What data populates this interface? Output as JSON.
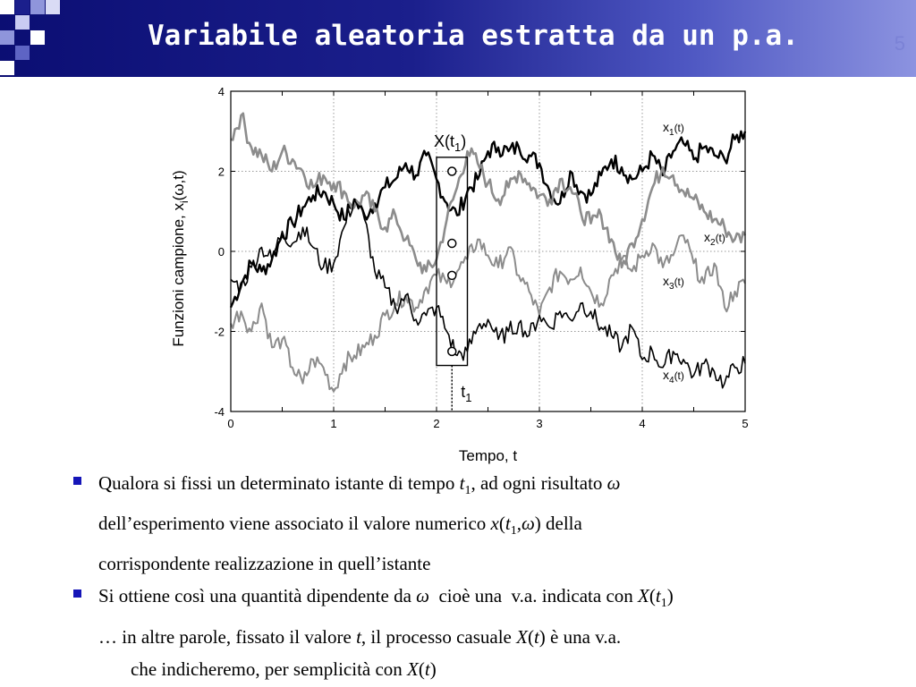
{
  "title": "Variabile aleatoria estratta da un p.a.",
  "slide_number": "5",
  "colors": {
    "title_bg_dark": "#0b0e73",
    "title_bg_light": "#8c93e0",
    "bullet": "#1515b8",
    "title_text": "#ffffff"
  },
  "chart_data": {
    "type": "line",
    "xlabel": "Tempo, t",
    "ylabel": "Funzioni campione, x",
    "ylabel_args": "(ω,t)",
    "ylabel_sub": "i",
    "xlim": [
      0,
      5
    ],
    "ylim": [
      -4,
      4
    ],
    "xticks": [
      "0",
      "1",
      "2",
      "3",
      "4",
      "5"
    ],
    "yticks": [
      "4",
      "2",
      "0",
      "-2",
      "-4"
    ],
    "grid": "dotted",
    "t1": 2.15,
    "annotation_box_x": [
      2.0,
      2.3
    ],
    "annotation_box_y": [
      -2.85,
      2.35
    ],
    "box_label": "X(t",
    "box_label_sub": "1",
    "t1_label": "t",
    "t1_label_sub": "1",
    "series": [
      {
        "name": "x",
        "sub": "1",
        "color": "#000000",
        "width": 2.4,
        "x": [
          0,
          0.1,
          0.2,
          0.3,
          0.4,
          0.5,
          0.6,
          0.7,
          0.8,
          0.9,
          1.0,
          1.1,
          1.2,
          1.3,
          1.4,
          1.5,
          1.6,
          1.7,
          1.8,
          1.9,
          2.0,
          2.1,
          2.2,
          2.3,
          2.4,
          2.5,
          2.6,
          2.7,
          2.8,
          2.9,
          3.0,
          3.1,
          3.2,
          3.3,
          3.4,
          3.5,
          3.6,
          3.7,
          3.8,
          3.9,
          4.0,
          4.1,
          4.2,
          4.3,
          4.4,
          4.5,
          4.6,
          4.7,
          4.8,
          4.9,
          5.0
        ],
        "y": [
          -1.4,
          -0.8,
          -0.3,
          -0.5,
          -0.2,
          0.4,
          0.7,
          1.1,
          1.4,
          1.5,
          1.2,
          0.8,
          1.3,
          0.9,
          1.2,
          1.6,
          1.8,
          2.2,
          1.9,
          2.4,
          1.8,
          1.2,
          0.9,
          1.5,
          1.8,
          2.5,
          2.6,
          2.5,
          2.6,
          2.4,
          2.2,
          1.5,
          1.2,
          2.0,
          1.5,
          1.4,
          1.9,
          2.3,
          2.1,
          1.8,
          2.0,
          2.4,
          1.9,
          2.5,
          2.7,
          2.3,
          2.6,
          2.4,
          2.3,
          2.8,
          3.0
        ]
      },
      {
        "name": "x",
        "sub": "2",
        "color": "#8c8c8c",
        "width": 2.6,
        "x": [
          0,
          0.1,
          0.2,
          0.3,
          0.4,
          0.5,
          0.6,
          0.7,
          0.8,
          0.9,
          1.0,
          1.1,
          1.2,
          1.3,
          1.4,
          1.5,
          1.6,
          1.7,
          1.8,
          1.9,
          2.0,
          2.1,
          2.2,
          2.3,
          2.4,
          2.5,
          2.6,
          2.7,
          2.8,
          2.9,
          3.0,
          3.1,
          3.2,
          3.3,
          3.4,
          3.5,
          3.6,
          3.7,
          3.8,
          3.9,
          4.0,
          4.1,
          4.2,
          4.3,
          4.4,
          4.5,
          4.6,
          4.7,
          4.8,
          4.9,
          5.0
        ],
        "y": [
          2.8,
          3.4,
          2.6,
          2.4,
          2.0,
          2.5,
          2.3,
          2.0,
          1.6,
          1.9,
          1.7,
          1.5,
          1.1,
          1.4,
          1.0,
          0.6,
          0.9,
          0.3,
          -0.2,
          -0.5,
          -0.2,
          0.8,
          1.6,
          2.5,
          2.2,
          1.7,
          1.3,
          1.6,
          2.0,
          1.7,
          1.4,
          1.3,
          1.8,
          1.6,
          1.0,
          0.7,
          0.9,
          0.3,
          -0.4,
          0.2,
          0.8,
          1.6,
          2.1,
          1.9,
          1.5,
          1.3,
          1.0,
          0.8,
          0.6,
          0.3,
          0.4
        ]
      },
      {
        "name": "x",
        "sub": "3",
        "color": "#8c8c8c",
        "width": 2.0,
        "x": [
          0,
          0.1,
          0.2,
          0.3,
          0.4,
          0.5,
          0.6,
          0.7,
          0.8,
          0.9,
          1.0,
          1.1,
          1.2,
          1.3,
          1.4,
          1.5,
          1.6,
          1.7,
          1.8,
          1.9,
          2.0,
          2.1,
          2.2,
          2.3,
          2.4,
          2.5,
          2.6,
          2.7,
          2.8,
          2.9,
          3.0,
          3.1,
          3.2,
          3.3,
          3.4,
          3.5,
          3.6,
          3.7,
          3.8,
          3.9,
          4.0,
          4.1,
          4.2,
          4.3,
          4.4,
          4.5,
          4.6,
          4.7,
          4.8,
          4.9,
          5.0
        ],
        "y": [
          -1.8,
          -1.5,
          -2.0,
          -1.3,
          -2.4,
          -2.2,
          -2.9,
          -3.3,
          -2.7,
          -2.9,
          -3.5,
          -2.8,
          -2.6,
          -2.4,
          -2.1,
          -1.6,
          -1.3,
          -1.1,
          -1.4,
          -0.9,
          -0.6,
          -0.8,
          -0.5,
          -0.2,
          0.3,
          -0.1,
          -0.4,
          0.1,
          -0.6,
          -1.0,
          -1.6,
          -0.9,
          -0.5,
          -0.7,
          -0.4,
          -1.0,
          -1.3,
          -0.6,
          -0.2,
          -0.5,
          -0.1,
          0.2,
          -0.4,
          -0.1,
          0.4,
          -0.3,
          -0.8,
          -0.3,
          -1.4,
          -1.0,
          -0.8
        ]
      },
      {
        "name": "x",
        "sub": "4",
        "color": "#000000",
        "width": 1.6,
        "x": [
          0,
          0.1,
          0.2,
          0.3,
          0.4,
          0.5,
          0.6,
          0.7,
          0.8,
          0.9,
          1.0,
          1.1,
          1.2,
          1.3,
          1.4,
          1.5,
          1.6,
          1.7,
          1.8,
          1.9,
          2.0,
          2.1,
          2.2,
          2.3,
          2.4,
          2.5,
          2.6,
          2.7,
          2.8,
          2.9,
          3.0,
          3.1,
          3.2,
          3.3,
          3.4,
          3.5,
          3.6,
          3.7,
          3.8,
          3.9,
          4.0,
          4.1,
          4.2,
          4.3,
          4.4,
          4.5,
          4.6,
          4.7,
          4.8,
          4.9,
          5.0
        ],
        "y": [
          -0.7,
          -0.9,
          -0.4,
          0.1,
          -0.2,
          0.5,
          0.2,
          0.6,
          0.1,
          -0.4,
          -0.3,
          0.6,
          1.3,
          0.8,
          -0.5,
          -0.9,
          -1.4,
          -1.1,
          -1.7,
          -1.6,
          -1.4,
          -2.0,
          -2.6,
          -2.5,
          -1.9,
          -1.7,
          -2.2,
          -2.0,
          -1.8,
          -2.1,
          -1.6,
          -1.9,
          -1.5,
          -1.7,
          -1.3,
          -1.5,
          -1.9,
          -2.1,
          -2.4,
          -1.9,
          -2.7,
          -2.5,
          -2.9,
          -2.5,
          -2.7,
          -3.1,
          -2.8,
          -3.0,
          -3.3,
          -2.9,
          -2.8
        ]
      }
    ],
    "markers": [
      {
        "x": 2.15,
        "y": 2.0
      },
      {
        "x": 2.15,
        "y": 0.2
      },
      {
        "x": 2.15,
        "y": -0.6
      },
      {
        "x": 2.15,
        "y": -2.5
      }
    ]
  },
  "bullets": [
    {
      "line1_pre": "Qualora si fissi un determinato istante di tempo ",
      "line1_t": "t",
      "line1_sub": "1",
      "line1_mid": ", ad ogni risultato ",
      "line1_omega": "ω",
      "line2_pre": "dell’esperimento viene associato il valore numerico ",
      "line2_x": "x",
      "line2_open": "(",
      "line2_t": "t",
      "line2_sub": "1",
      "line2_comma": ",",
      "line2_omega": "ω",
      "line2_close": ")",
      "line2_post": " della",
      "line3": "corrispondente realizzazione in quell’istante"
    },
    {
      "line1_pre": " Si ottiene così una quantità dipendente da ",
      "line1_omega": "ω",
      "line1_mid": "  cioè una  v.a. indicata con ",
      "line1_X": "X",
      "line1_open": "(",
      "line1_t": "t",
      "line1_sub": "1",
      "line1_close": ")",
      "line2_pre": "… in altre parole, fissato il valore ",
      "line2_t": "t",
      "line2_mid": ", il processo casuale ",
      "line2_X": "X",
      "line2_open": "(",
      "line2_t2": "t",
      "line2_close": ")",
      "line2_post": " è una v.a.",
      "line3_pre": "che indicheremo, per semplicità con ",
      "line3_X": "X",
      "line3_open": "(",
      "line3_t": "t",
      "line3_close": ")"
    }
  ]
}
